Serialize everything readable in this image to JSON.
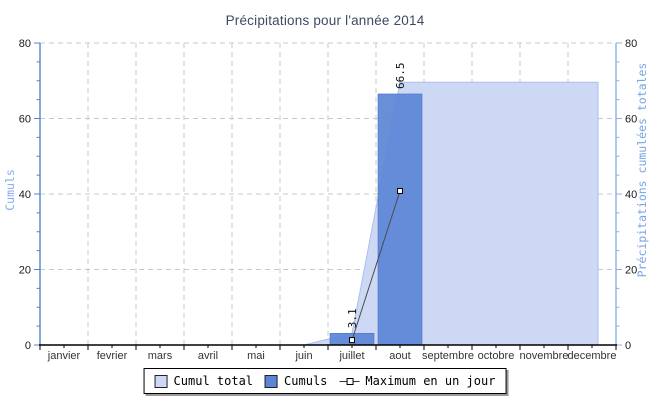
{
  "chart_data": {
    "type": "composite",
    "title": "Précipitations pour l'année 2014",
    "categories": [
      "janvier",
      "fevrier",
      "mars",
      "avril",
      "mai",
      "juin",
      "juillet",
      "aout",
      "septembre",
      "octobre",
      "novembre",
      "decembre"
    ],
    "y_left": {
      "label": "Cumuls",
      "min": 0,
      "max": 80,
      "major_tick_step": 20,
      "minor_tick_step": 5,
      "axis_color": "#5585c8",
      "label_color": "#85a9ee",
      "tick_text_color": "#1a1a1a"
    },
    "y_right": {
      "label": "Précipitations cumulées totales",
      "min": 0,
      "max": 80,
      "major_tick_step": 20,
      "minor_tick_step": 5,
      "axis_color": "#8fb0e6",
      "label_color": "#79a3e8",
      "tick_text_color": "#1a1a1a"
    },
    "x_axis": {
      "color": "#000000",
      "tick_text_color": "#333333"
    },
    "grid": {
      "style": "dashed",
      "color": "#c9c9c9"
    },
    "series": [
      {
        "name": "Cumul total",
        "type": "area",
        "color": "#cdd9f4",
        "edge_color": "#aabfec",
        "values": [
          0,
          0,
          0,
          0,
          0,
          0,
          3.1,
          69.6,
          69.6,
          69.6,
          69.6,
          69.6
        ]
      },
      {
        "name": "Cumuls",
        "type": "bar",
        "color": "#5c85d6",
        "edge_color": "#4b74c2",
        "values": [
          0,
          0,
          0,
          0,
          0,
          0,
          3.1,
          66.5,
          0,
          0,
          0,
          0
        ],
        "value_labels": [
          "",
          "",
          "",
          "",
          "",
          "",
          "3.1",
          "66.5",
          "",
          "",
          "",
          ""
        ]
      },
      {
        "name": "Maximum en un jour",
        "type": "line",
        "color": "#4a4a4a",
        "marker": "square-white",
        "values": [
          null,
          null,
          null,
          null,
          null,
          null,
          1.3,
          40.8,
          null,
          null,
          null,
          null
        ]
      }
    ],
    "legend_position": "bottom"
  },
  "legend": {
    "items": [
      {
        "label": "Cumul total",
        "swatch": "#cdd9f4"
      },
      {
        "label": "Cumuls",
        "swatch": "#5c85d6"
      },
      {
        "label": "Maximum en un jour",
        "swatch": "marker-line"
      }
    ]
  }
}
